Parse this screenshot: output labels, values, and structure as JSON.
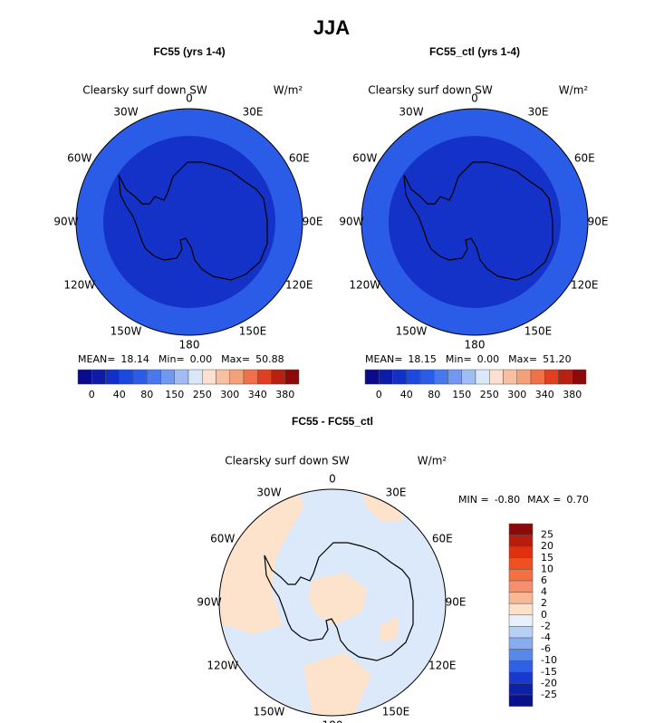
{
  "title": "JJA",
  "longitude_labels": [
    "0",
    "30E",
    "60E",
    "90E",
    "120E",
    "150E",
    "180",
    "150W",
    "120W",
    "90W",
    "60W",
    "30W"
  ],
  "panels": [
    {
      "title": "FC55 (yrs 1-4)",
      "variable": "Clearsky surf down SW",
      "units": "W/m²",
      "stats": [
        {
          "label": "MEAN=",
          "value": "18.14"
        },
        {
          "label": "Min=",
          "value": "0.00"
        },
        {
          "label": "Max=",
          "value": "50.88"
        }
      ]
    },
    {
      "title": "FC55_ctl (yrs 1-4)",
      "variable": "Clearsky surf down SW",
      "units": "W/m²",
      "stats": [
        {
          "label": "MEAN=",
          "value": "18.15"
        },
        {
          "label": "Min=",
          "value": "0.00"
        },
        {
          "label": "Max=",
          "value": "51.20"
        }
      ]
    },
    {
      "title": "FC55 - FC55_ctl",
      "variable": "Clearsky surf down SW",
      "units": "W/m²",
      "stats": [
        {
          "label": "MIN =",
          "value": "-0.80"
        },
        {
          "label": "MAX =",
          "value": "0.70"
        }
      ]
    }
  ],
  "colorbar_abs": {
    "labels": [
      "0",
      "40",
      "80",
      "150",
      "250",
      "300",
      "340",
      "380"
    ],
    "colors": [
      "#0a0a8c",
      "#0c1ca8",
      "#1030c8",
      "#1a48e0",
      "#2a5ce8",
      "#4878f0",
      "#7098f0",
      "#a0bcf4",
      "#d8e8f8",
      "#fde0d0",
      "#f8c0a0",
      "#f4a078",
      "#f07048",
      "#e04020",
      "#b82010",
      "#8c0a0a"
    ]
  },
  "colorbar_diff": {
    "labels": [
      "25",
      "20",
      "15",
      "10",
      "6",
      "4",
      "2",
      "0",
      "-2",
      "-4",
      "-6",
      "-10",
      "-15",
      "-20",
      "-25"
    ],
    "colors": [
      "#8c0a0a",
      "#b81c0c",
      "#e03010",
      "#f05020",
      "#f47040",
      "#f49070",
      "#f8b898",
      "#fde0c8",
      "#e8f0fc",
      "#b8d0f4",
      "#88acf0",
      "#5888ec",
      "#3060e4",
      "#1838d0",
      "#0c20a8",
      "#08108c"
    ]
  }
}
